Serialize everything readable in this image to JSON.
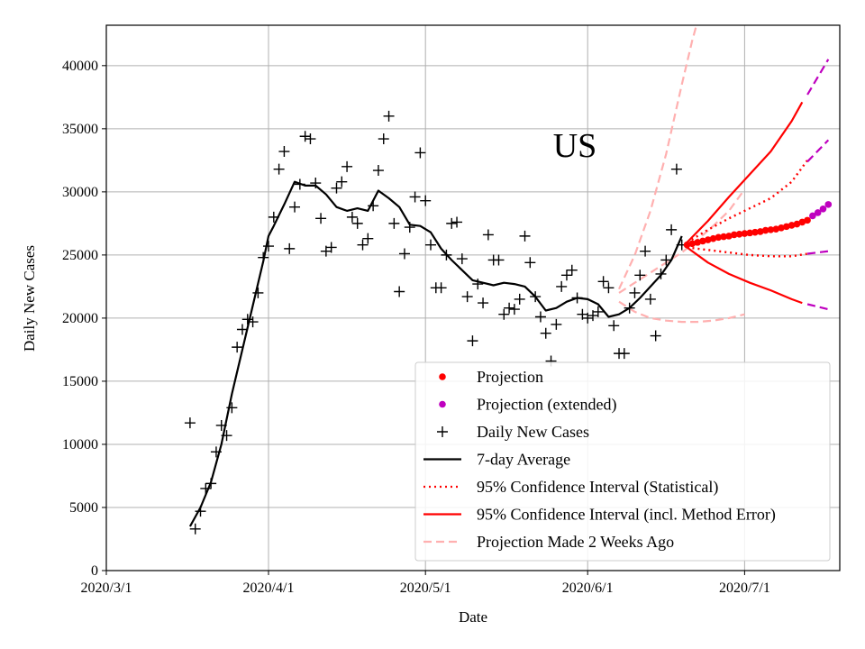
{
  "chart_data": {
    "type": "line",
    "title": "US",
    "xlabel": "Date",
    "ylabel": "Daily New Cases",
    "x_tick_labels": [
      "2020/3/1",
      "2020/4/1",
      "2020/5/1",
      "2020/6/1",
      "2020/7/1"
    ],
    "x_tick_dates": [
      "2020-03-01",
      "2020-04-01",
      "2020-05-01",
      "2020-06-01",
      "2020-07-01"
    ],
    "xlim": [
      "2020-03-01",
      "2020-07-19"
    ],
    "y_tick_labels": [
      "0",
      "5000",
      "10000",
      "15000",
      "20000",
      "25000",
      "30000",
      "35000",
      "40000"
    ],
    "y_tick_values": [
      0,
      5000,
      10000,
      15000,
      20000,
      25000,
      30000,
      35000,
      40000
    ],
    "ylim": [
      0,
      43200
    ],
    "grid": true,
    "legend_position": "lower-right",
    "legend": [
      {
        "label": "Projection",
        "style": "dot",
        "color": "#ff0000"
      },
      {
        "label": "Projection (extended)",
        "style": "dot",
        "color": "#bf00bf"
      },
      {
        "label": "Daily New Cases",
        "style": "plus",
        "color": "#000000"
      },
      {
        "label": "7-day Average",
        "style": "solid",
        "color": "#000000"
      },
      {
        "label": "95% Confidence Interval (Statistical)",
        "style": "dotted",
        "color": "#ff0000"
      },
      {
        "label": "95% Confidence Interval (incl. Method Error)",
        "style": "solid",
        "color": "#ff0000"
      },
      {
        "label": "Projection Made 2 Weeks Ago",
        "style": "dashed",
        "color": "#ffb0b0"
      }
    ],
    "series": [
      {
        "name": "Daily New Cases",
        "kind": "scatter-plus",
        "color": "#000000",
        "x": [
          "2020-03-17",
          "2020-03-18",
          "2020-03-19",
          "2020-03-20",
          "2020-03-21",
          "2020-03-22",
          "2020-03-23",
          "2020-03-24",
          "2020-03-25",
          "2020-03-26",
          "2020-03-27",
          "2020-03-28",
          "2020-03-29",
          "2020-03-30",
          "2020-03-31",
          "2020-04-01",
          "2020-04-02",
          "2020-04-03",
          "2020-04-04",
          "2020-04-05",
          "2020-04-06",
          "2020-04-07",
          "2020-04-08",
          "2020-04-09",
          "2020-04-10",
          "2020-04-11",
          "2020-04-12",
          "2020-04-13",
          "2020-04-14",
          "2020-04-15",
          "2020-04-16",
          "2020-04-17",
          "2020-04-18",
          "2020-04-19",
          "2020-04-20",
          "2020-04-21",
          "2020-04-22",
          "2020-04-23",
          "2020-04-24",
          "2020-04-25",
          "2020-04-26",
          "2020-04-27",
          "2020-04-28",
          "2020-04-29",
          "2020-04-30",
          "2020-05-01",
          "2020-05-02",
          "2020-05-03",
          "2020-05-04",
          "2020-05-05",
          "2020-05-06",
          "2020-05-07",
          "2020-05-08",
          "2020-05-09",
          "2020-05-10",
          "2020-05-11",
          "2020-05-12",
          "2020-05-13",
          "2020-05-14",
          "2020-05-15",
          "2020-05-16",
          "2020-05-17",
          "2020-05-18",
          "2020-05-19",
          "2020-05-20",
          "2020-05-21",
          "2020-05-22",
          "2020-05-23",
          "2020-05-24",
          "2020-05-25",
          "2020-05-26",
          "2020-05-27",
          "2020-05-28",
          "2020-05-29",
          "2020-05-30",
          "2020-05-31",
          "2020-06-01",
          "2020-06-02",
          "2020-06-03",
          "2020-06-04",
          "2020-06-05",
          "2020-06-06",
          "2020-06-07",
          "2020-06-08",
          "2020-06-09",
          "2020-06-10",
          "2020-06-11",
          "2020-06-12",
          "2020-06-13",
          "2020-06-14",
          "2020-06-15",
          "2020-06-16",
          "2020-06-17",
          "2020-06-18",
          "2020-06-19"
        ],
        "y": [
          11700,
          3300,
          4700,
          6500,
          6900,
          9400,
          11500,
          10700,
          12900,
          17700,
          19100,
          19900,
          19700,
          22000,
          24800,
          25700,
          28000,
          31800,
          33200,
          25500,
          28800,
          30600,
          34400,
          34200,
          30700,
          27900,
          25300,
          25600,
          30300,
          30800,
          32000,
          28000,
          27500,
          25800,
          26300,
          28900,
          31700,
          34200,
          36000,
          27500,
          22100,
          25100,
          27200,
          29600,
          33100,
          29300,
          25800,
          22400,
          22400,
          25000,
          27500,
          27600,
          24700,
          21700,
          18200,
          22700,
          21200,
          26600,
          24600,
          24600,
          20300,
          20800,
          20700,
          21500,
          26500,
          24400,
          21700,
          20100,
          18800,
          16600,
          19500,
          22500,
          23400,
          23800,
          21600,
          20300,
          20000,
          20200,
          20500,
          22900,
          22400,
          19400,
          17200,
          17200,
          20800,
          22000,
          23400,
          25300,
          21500,
          18600,
          23500,
          24600,
          27000,
          31800,
          25800
        ]
      },
      {
        "name": "7-day Average",
        "kind": "line",
        "color": "#000000",
        "x": [
          "2020-03-17",
          "2020-03-19",
          "2020-03-21",
          "2020-03-23",
          "2020-03-25",
          "2020-03-27",
          "2020-03-29",
          "2020-03-31",
          "2020-04-01",
          "2020-04-02",
          "2020-04-04",
          "2020-04-06",
          "2020-04-08",
          "2020-04-10",
          "2020-04-12",
          "2020-04-14",
          "2020-04-16",
          "2020-04-18",
          "2020-04-20",
          "2020-04-22",
          "2020-04-24",
          "2020-04-26",
          "2020-04-28",
          "2020-04-30",
          "2020-05-02",
          "2020-05-04",
          "2020-05-06",
          "2020-05-08",
          "2020-05-10",
          "2020-05-12",
          "2020-05-14",
          "2020-05-16",
          "2020-05-18",
          "2020-05-20",
          "2020-05-22",
          "2020-05-24",
          "2020-05-26",
          "2020-05-28",
          "2020-05-30",
          "2020-06-01",
          "2020-06-03",
          "2020-06-05",
          "2020-06-07",
          "2020-06-09",
          "2020-06-11",
          "2020-06-13",
          "2020-06-15",
          "2020-06-17",
          "2020-06-19"
        ],
        "y": [
          3500,
          5000,
          7000,
          10000,
          14000,
          17500,
          21000,
          24500,
          26500,
          27300,
          29000,
          30800,
          30500,
          30500,
          29800,
          28800,
          28500,
          28700,
          28500,
          30100,
          29500,
          28800,
          27400,
          27300,
          26800,
          25500,
          24600,
          23800,
          23000,
          22800,
          22600,
          22800,
          22700,
          22500,
          21700,
          20600,
          20800,
          21300,
          21600,
          21500,
          21100,
          20100,
          20300,
          20800,
          21600,
          22500,
          23400,
          24600,
          26500
        ]
      },
      {
        "name": "Projection",
        "kind": "dots",
        "color": "#ff0000",
        "x": [
          "2020-06-20",
          "2020-06-21",
          "2020-06-22",
          "2020-06-23",
          "2020-06-24",
          "2020-06-25",
          "2020-06-26",
          "2020-06-27",
          "2020-06-28",
          "2020-06-29",
          "2020-06-30",
          "2020-07-01",
          "2020-07-02",
          "2020-07-03",
          "2020-07-04",
          "2020-07-05",
          "2020-07-06",
          "2020-07-07",
          "2020-07-08",
          "2020-07-09",
          "2020-07-10",
          "2020-07-11",
          "2020-07-12",
          "2020-07-13"
        ],
        "y": [
          25800,
          25900,
          26000,
          26100,
          26200,
          26300,
          26400,
          26450,
          26500,
          26600,
          26650,
          26700,
          26750,
          26800,
          26850,
          26950,
          27000,
          27050,
          27150,
          27250,
          27350,
          27450,
          27600,
          27750
        ]
      },
      {
        "name": "Projection (extended)",
        "kind": "dots",
        "color": "#bf00bf",
        "x": [
          "2020-07-14",
          "2020-07-15",
          "2020-07-16",
          "2020-07-17"
        ],
        "y": [
          28100,
          28350,
          28650,
          29000
        ]
      },
      {
        "name": "95% Confidence Interval (Statistical)",
        "kind": "dotted-line",
        "color": "#ff0000",
        "sub": [
          {
            "x": [
              "2020-06-20",
              "2020-06-24",
              "2020-06-28",
              "2020-07-02",
              "2020-07-06",
              "2020-07-10",
              "2020-07-13"
            ],
            "y": [
              26000,
              27000,
              27900,
              28700,
              29500,
              30800,
              32500
            ]
          },
          {
            "x": [
              "2020-06-20",
              "2020-06-24",
              "2020-06-28",
              "2020-07-02",
              "2020-07-06",
              "2020-07-10",
              "2020-07-13"
            ],
            "y": [
              25600,
              25400,
              25200,
              25000,
              24900,
              24900,
              25100
            ]
          }
        ]
      },
      {
        "name": "95% Confidence Interval (incl. Method Error)",
        "kind": "solid-line",
        "color": "#ff0000",
        "sub": [
          {
            "x": [
              "2020-06-20",
              "2020-06-24",
              "2020-06-28",
              "2020-07-02",
              "2020-07-06",
              "2020-07-10",
              "2020-07-12"
            ],
            "y": [
              26000,
              27700,
              29600,
              31400,
              33200,
              35600,
              37100
            ]
          },
          {
            "x": [
              "2020-06-20",
              "2020-06-24",
              "2020-06-28",
              "2020-07-02",
              "2020-07-06",
              "2020-07-10",
              "2020-07-12"
            ],
            "y": [
              25600,
              24400,
              23500,
              22800,
              22200,
              21500,
              21200
            ]
          }
        ]
      },
      {
        "name": "Projection (extended) interval",
        "kind": "dashed-line",
        "color": "#bf00bf",
        "sub": [
          {
            "x": [
              "2020-07-13",
              "2020-07-17"
            ],
            "y": [
              37700,
              40500
            ]
          },
          {
            "x": [
              "2020-07-13",
              "2020-07-17"
            ],
            "y": [
              32400,
              34100
            ]
          },
          {
            "x": [
              "2020-07-13",
              "2020-07-17"
            ],
            "y": [
              25100,
              25300
            ]
          },
          {
            "x": [
              "2020-07-13",
              "2020-07-17"
            ],
            "y": [
              21100,
              20700
            ]
          }
        ]
      },
      {
        "name": "Projection Made 2 Weeks Ago",
        "kind": "dashed-line",
        "color": "#ffb0b0",
        "sub": [
          {
            "x": [
              "2020-06-07",
              "2020-06-10",
              "2020-06-13",
              "2020-06-16",
              "2020-06-19",
              "2020-06-21",
              "2020-06-23"
            ],
            "y": [
              22300,
              25000,
              28500,
              33000,
              38500,
              42000,
              45000
            ]
          },
          {
            "x": [
              "2020-06-07",
              "2020-06-10",
              "2020-06-13",
              "2020-06-16",
              "2020-06-19",
              "2020-06-22",
              "2020-06-25",
              "2020-06-28",
              "2020-07-01"
            ],
            "y": [
              22000,
              22800,
              23600,
              24400,
              25200,
              26200,
              27300,
              28500,
              30200
            ]
          },
          {
            "x": [
              "2020-06-07",
              "2020-06-10",
              "2020-06-13",
              "2020-06-16",
              "2020-06-19",
              "2020-06-22",
              "2020-06-25",
              "2020-06-28",
              "2020-07-01"
            ],
            "y": [
              21300,
              20500,
              20000,
              19800,
              19700,
              19700,
              19800,
              20000,
              20300
            ]
          }
        ]
      }
    ]
  }
}
